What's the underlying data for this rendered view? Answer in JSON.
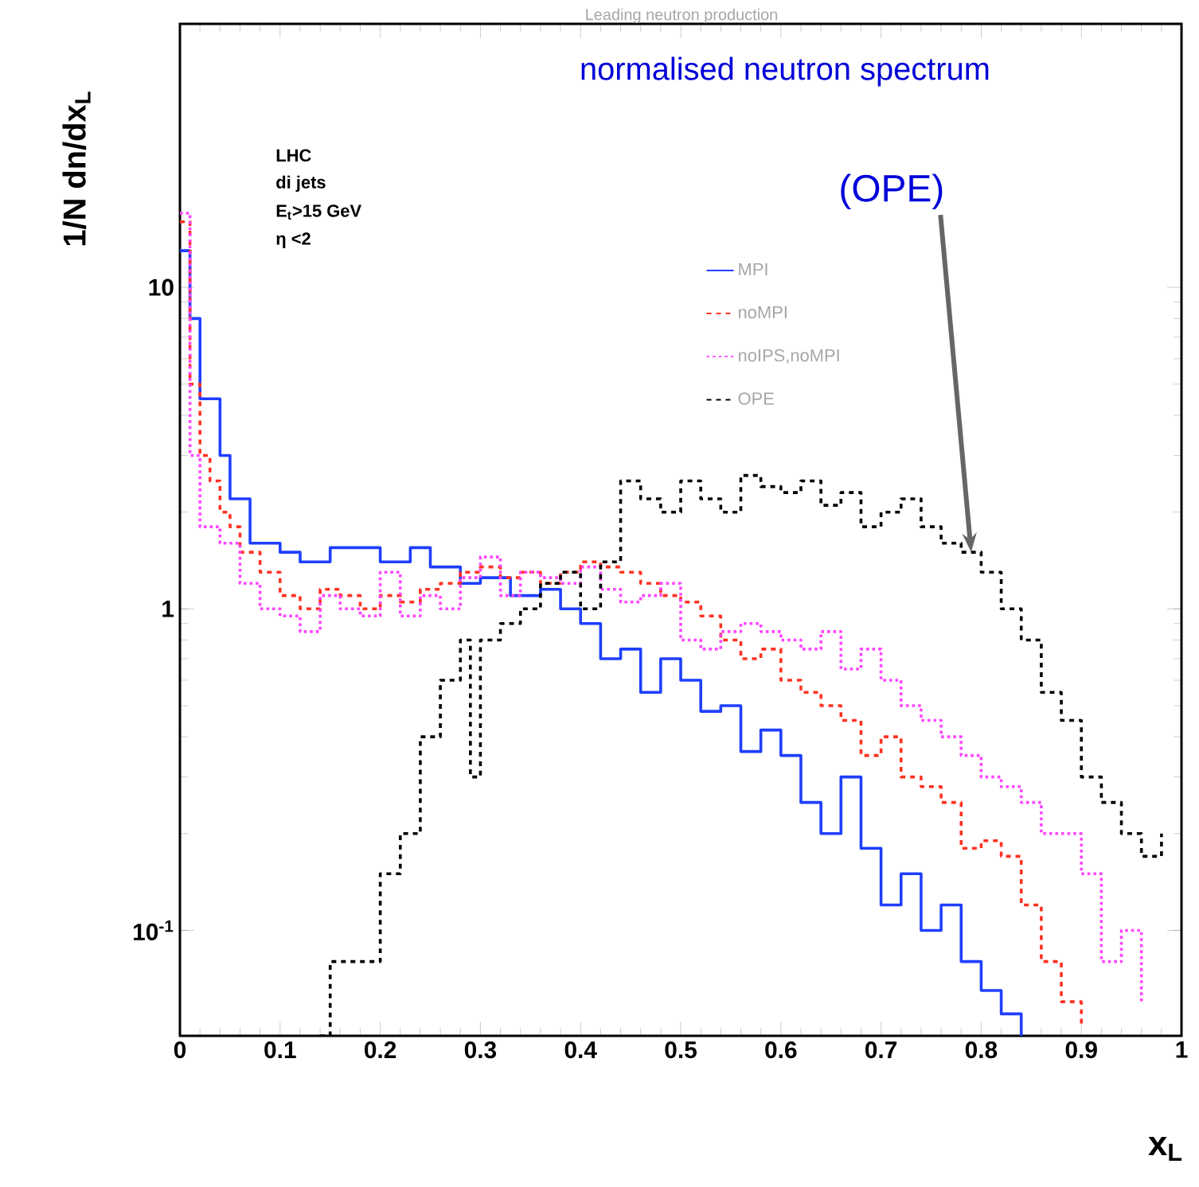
{
  "chart_data": {
    "type": "step",
    "title": "Leading neutron production",
    "subtitle": "normalised neutron spectrum",
    "xlabel": "x$_{L}$",
    "ylabel": "1/N dn/dx$_{L}$",
    "annotations": [
      "LHC",
      "di jets",
      "E$_{t}$>15 GeV",
      "η <2",
      {
        "text": "(OPE)",
        "x": 0.79,
        "y": 1.5
      }
    ],
    "xlim": [
      0,
      1
    ],
    "ylim": [
      0.047,
      66
    ],
    "log": "y",
    "xticks": [
      0,
      0.1,
      0.2,
      0.3,
      0.4,
      0.5,
      0.6,
      0.7,
      0.8,
      0.9,
      1
    ],
    "yticks": [
      {
        "value": 0.1,
        "label": "10$^{-1}$"
      },
      1,
      10
    ],
    "grid": false,
    "legend": "right",
    "series": [
      {
        "name": "MPI",
        "color": "#1f3fff",
        "line_style": "solid",
        "x": [
          0,
          0.01,
          0.02,
          0.04,
          0.05,
          0.07,
          0.1,
          0.12,
          0.15,
          0.2,
          0.23,
          0.25,
          0.28,
          0.3,
          0.33,
          0.36,
          0.38,
          0.4,
          0.42,
          0.44,
          0.46,
          0.48,
          0.5,
          0.52,
          0.54,
          0.56,
          0.58,
          0.6,
          0.62,
          0.64,
          0.66,
          0.68,
          0.7,
          0.72,
          0.74,
          0.76,
          0.78,
          0.8,
          0.82,
          0.84
        ],
        "values": [
          13,
          8,
          4.5,
          3,
          2.2,
          1.6,
          1.5,
          1.4,
          1.55,
          1.4,
          1.55,
          1.35,
          1.2,
          1.25,
          1.1,
          1.15,
          1.0,
          0.9,
          0.7,
          0.75,
          0.55,
          0.7,
          0.6,
          0.48,
          0.5,
          0.36,
          0.42,
          0.35,
          0.25,
          0.2,
          0.3,
          0.18,
          0.12,
          0.15,
          0.1,
          0.12,
          0.08,
          0.065,
          0.055,
          0.047
        ]
      },
      {
        "name": "noMPI",
        "color": "#ff3322",
        "line_style": "dashed",
        "x": [
          0,
          0.01,
          0.02,
          0.03,
          0.04,
          0.05,
          0.06,
          0.08,
          0.1,
          0.12,
          0.14,
          0.16,
          0.18,
          0.2,
          0.22,
          0.24,
          0.26,
          0.28,
          0.3,
          0.32,
          0.34,
          0.36,
          0.38,
          0.4,
          0.42,
          0.44,
          0.46,
          0.48,
          0.5,
          0.52,
          0.54,
          0.56,
          0.58,
          0.6,
          0.62,
          0.64,
          0.66,
          0.68,
          0.7,
          0.72,
          0.74,
          0.76,
          0.78,
          0.8,
          0.82,
          0.84,
          0.86,
          0.88,
          0.9
        ],
        "values": [
          16,
          5,
          3,
          2.5,
          2,
          1.8,
          1.5,
          1.3,
          1.1,
          1.0,
          1.15,
          1.1,
          1.0,
          1.1,
          1.05,
          1.15,
          1.2,
          1.3,
          1.35,
          1.25,
          1.3,
          1.2,
          1.3,
          1.4,
          1.35,
          1.3,
          1.2,
          1.1,
          1.05,
          0.95,
          0.8,
          0.7,
          0.75,
          0.6,
          0.55,
          0.5,
          0.45,
          0.35,
          0.4,
          0.3,
          0.28,
          0.25,
          0.18,
          0.19,
          0.17,
          0.12,
          0.08,
          0.06,
          0.05
        ]
      },
      {
        "name": "noIPS,noMPI",
        "color": "#ff44ff",
        "line_style": "dotted",
        "x": [
          0,
          0.01,
          0.02,
          0.04,
          0.06,
          0.08,
          0.1,
          0.12,
          0.14,
          0.16,
          0.18,
          0.2,
          0.22,
          0.24,
          0.26,
          0.28,
          0.3,
          0.32,
          0.34,
          0.36,
          0.38,
          0.4,
          0.42,
          0.44,
          0.46,
          0.48,
          0.5,
          0.52,
          0.54,
          0.56,
          0.58,
          0.6,
          0.62,
          0.64,
          0.66,
          0.68,
          0.7,
          0.72,
          0.74,
          0.76,
          0.78,
          0.8,
          0.82,
          0.84,
          0.86,
          0.88,
          0.9,
          0.92,
          0.94,
          0.96
        ],
        "values": [
          17,
          3,
          1.8,
          1.6,
          1.2,
          1.0,
          0.95,
          0.85,
          1.1,
          1.0,
          0.95,
          1.3,
          0.95,
          1.1,
          1.0,
          1.25,
          1.45,
          1.1,
          1.3,
          1.25,
          1.2,
          1.35,
          1.15,
          1.05,
          1.1,
          1.2,
          0.8,
          0.75,
          0.85,
          0.9,
          0.85,
          0.8,
          0.75,
          0.85,
          0.65,
          0.75,
          0.6,
          0.5,
          0.45,
          0.4,
          0.35,
          0.3,
          0.28,
          0.25,
          0.2,
          0.2,
          0.15,
          0.08,
          0.1,
          0.06
        ]
      },
      {
        "name": "OPE",
        "color": "#000000",
        "line_style": "dashed",
        "x": [
          0.14,
          0.15,
          0.18,
          0.2,
          0.22,
          0.24,
          0.26,
          0.28,
          0.29,
          0.3,
          0.32,
          0.34,
          0.36,
          0.38,
          0.4,
          0.42,
          0.44,
          0.46,
          0.48,
          0.5,
          0.52,
          0.54,
          0.56,
          0.58,
          0.6,
          0.62,
          0.64,
          0.66,
          0.68,
          0.7,
          0.72,
          0.74,
          0.76,
          0.78,
          0.8,
          0.82,
          0.84,
          0.86,
          0.88,
          0.9,
          0.92,
          0.94,
          0.96,
          0.98
        ],
        "values": [
          0.047,
          0.08,
          0.08,
          0.15,
          0.2,
          0.4,
          0.6,
          0.8,
          0.3,
          0.8,
          0.9,
          1.0,
          1.2,
          1.3,
          1.0,
          1.4,
          2.5,
          2.2,
          2.0,
          2.5,
          2.2,
          2.0,
          2.6,
          2.4,
          2.3,
          2.5,
          2.1,
          2.3,
          1.8,
          2.0,
          2.2,
          1.8,
          1.6,
          1.5,
          1.3,
          1.0,
          0.8,
          0.55,
          0.45,
          0.3,
          0.25,
          0.2,
          0.17,
          0.2
        ]
      }
    ]
  }
}
